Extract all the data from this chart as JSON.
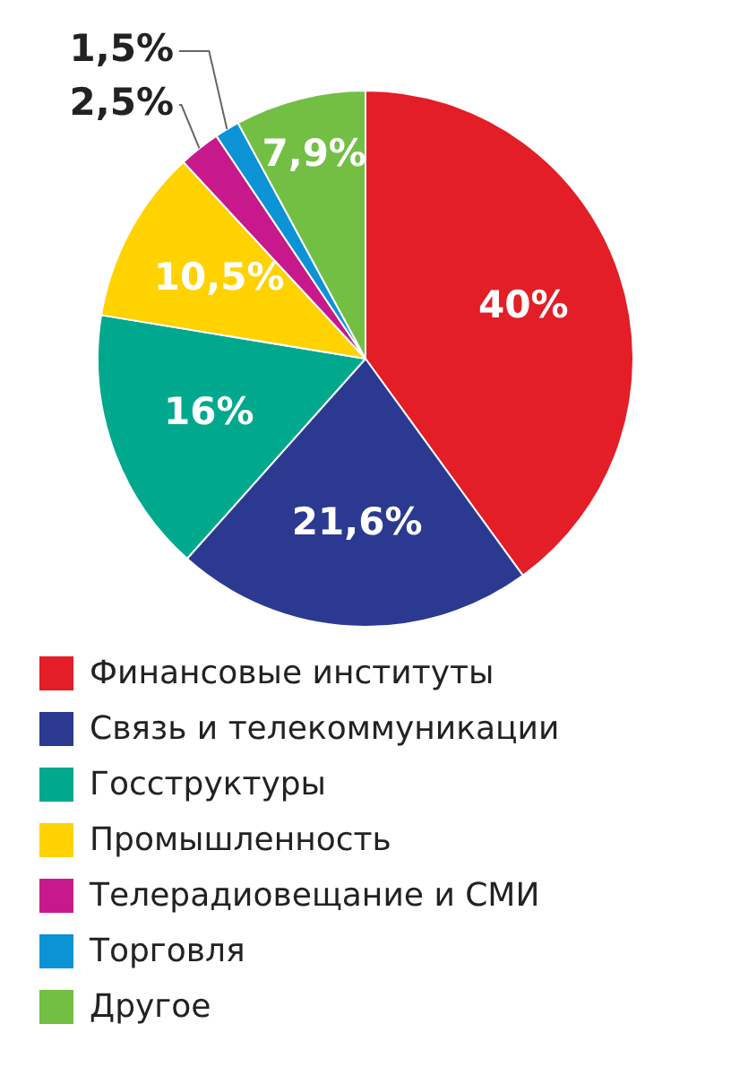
{
  "chart_data": {
    "type": "pie",
    "categories": [
      "Финансовые институты",
      "Связь и телекоммуникации",
      "Госструктуры",
      "Промышленность",
      "Телерадиовещание и СМИ",
      "Торговля",
      "Другое"
    ],
    "values": [
      40,
      21.6,
      16,
      10.5,
      2.5,
      1.5,
      7.9
    ],
    "value_labels": [
      "40%",
      "21,6%",
      "16%",
      "10,5%",
      "2,5%",
      "1,5%",
      "7,9%"
    ],
    "colors": [
      "#e31e26",
      "#2b3a90",
      "#00a88e",
      "#ffd200",
      "#c8198c",
      "#0b93d6",
      "#72bf44"
    ],
    "legend": "bottom"
  }
}
